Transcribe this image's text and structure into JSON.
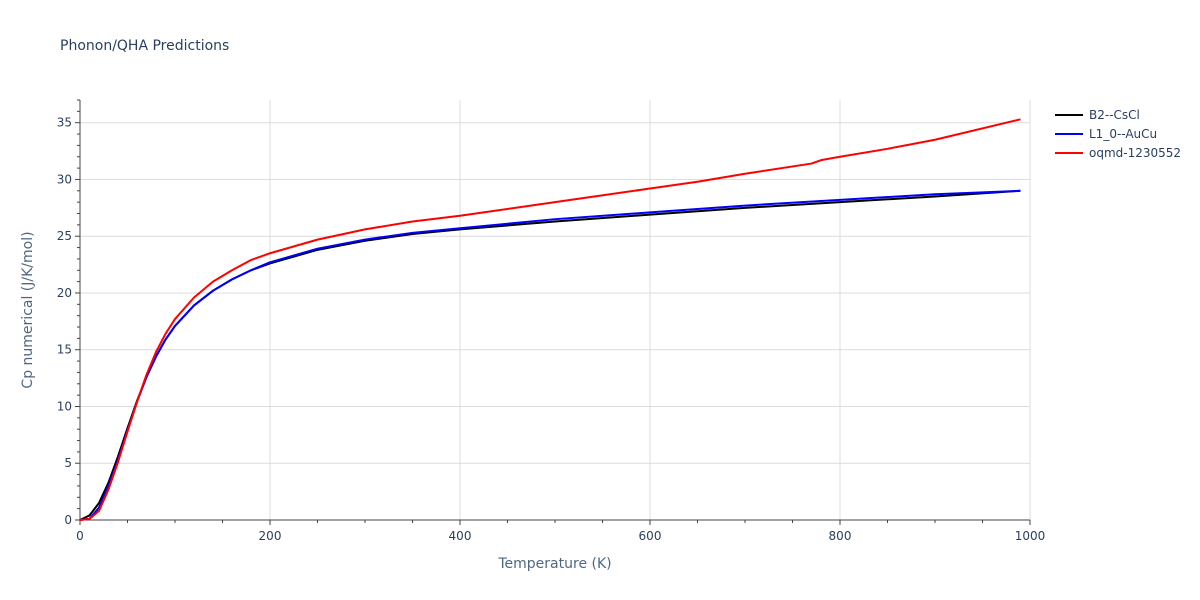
{
  "chart_title": "Phonon/QHA Predictions",
  "chart_data": {
    "type": "line",
    "title": "Phonon/QHA Predictions",
    "xlabel": "Temperature (K)",
    "ylabel": "Cp numerical (J/K/mol)",
    "xlim": [
      0,
      1000
    ],
    "ylim": [
      0,
      37
    ],
    "x_ticks": [
      0,
      200,
      400,
      600,
      800,
      1000
    ],
    "y_ticks": [
      0,
      5,
      10,
      15,
      20,
      25,
      30,
      35
    ],
    "grid": true,
    "legend_position": "top-right",
    "series": [
      {
        "name": "B2--CsCl",
        "color": "#000000",
        "x": [
          0,
          10,
          20,
          30,
          40,
          50,
          60,
          70,
          80,
          90,
          100,
          120,
          140,
          160,
          180,
          200,
          250,
          300,
          350,
          400,
          500,
          600,
          700,
          800,
          900,
          990
        ],
        "y": [
          0,
          0.4,
          1.5,
          3.3,
          5.6,
          8.1,
          10.5,
          12.6,
          14.4,
          15.9,
          17.1,
          18.9,
          20.2,
          21.2,
          22.0,
          22.6,
          23.8,
          24.6,
          25.2,
          25.6,
          26.3,
          26.9,
          27.5,
          28.0,
          28.5,
          29.0
        ]
      },
      {
        "name": "L1_0--AuCu",
        "color": "#0000ff",
        "x": [
          0,
          10,
          20,
          30,
          40,
          50,
          60,
          70,
          80,
          90,
          100,
          120,
          140,
          160,
          180,
          200,
          250,
          300,
          350,
          400,
          500,
          600,
          700,
          800,
          900,
          990
        ],
        "y": [
          0,
          0.1,
          1.1,
          3.0,
          5.3,
          7.9,
          10.4,
          12.6,
          14.4,
          15.9,
          17.1,
          18.9,
          20.2,
          21.2,
          22.0,
          22.7,
          23.9,
          24.7,
          25.3,
          25.7,
          26.5,
          27.1,
          27.7,
          28.2,
          28.7,
          29.0
        ]
      },
      {
        "name": "oqmd-1230552",
        "color": "#ff0000",
        "x": [
          0,
          10,
          20,
          30,
          40,
          50,
          60,
          70,
          80,
          90,
          100,
          120,
          140,
          160,
          180,
          200,
          250,
          300,
          350,
          400,
          500,
          600,
          650,
          700,
          770,
          780,
          800,
          850,
          900,
          990
        ],
        "y": [
          0,
          0.1,
          0.8,
          2.7,
          5.1,
          7.8,
          10.4,
          12.8,
          14.8,
          16.4,
          17.7,
          19.6,
          21.0,
          22.0,
          22.9,
          23.5,
          24.7,
          25.6,
          26.3,
          26.8,
          28.0,
          29.2,
          29.8,
          30.5,
          31.4,
          31.7,
          32.0,
          32.7,
          33.5,
          35.3
        ]
      }
    ]
  }
}
